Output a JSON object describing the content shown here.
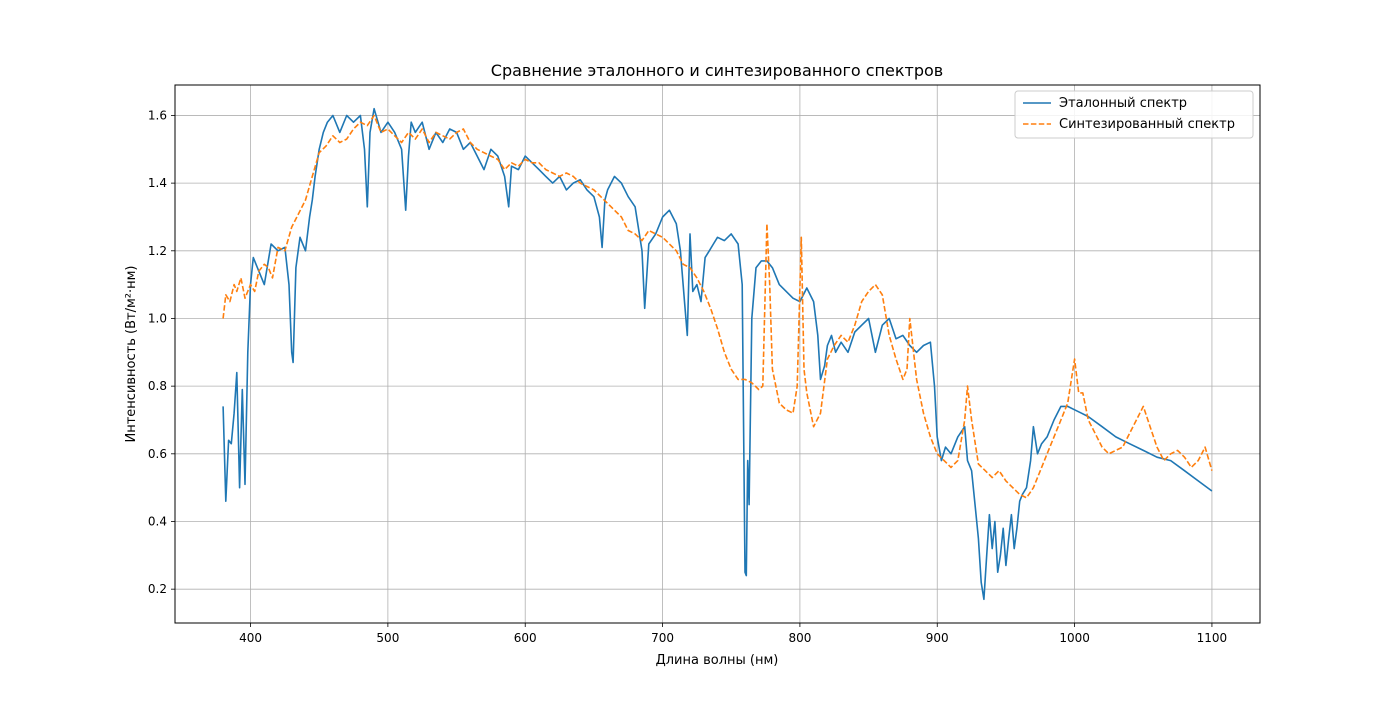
{
  "chart_data": {
    "type": "line",
    "title": "Сравнение эталонного и синтезированного спектров",
    "xlabel": "Длина волны (нм)",
    "ylabel": "Интенсивность (Вт/м²·нм)",
    "xlim": [
      345,
      1135
    ],
    "ylim": [
      0.1,
      1.69
    ],
    "xticks": [
      400,
      500,
      600,
      700,
      800,
      900,
      1000,
      1100
    ],
    "yticks": [
      0.2,
      0.4,
      0.6,
      0.8,
      1.0,
      1.2,
      1.4,
      1.6
    ],
    "ytick_labels": [
      "0.2",
      "0.4",
      "0.6",
      "0.8",
      "1.0",
      "1.2",
      "1.4",
      "1.6"
    ],
    "grid": true,
    "legend_position": "top-right",
    "series": [
      {
        "name": "Эталонный спектр",
        "color": "#1f77b4",
        "dash": "solid",
        "x": [
          380,
          382,
          384,
          386,
          388,
          390,
          392,
          394,
          396,
          398,
          400,
          402,
          405,
          410,
          415,
          420,
          425,
          428,
          430,
          431,
          433,
          436,
          440,
          443,
          445,
          447,
          450,
          453,
          456,
          460,
          465,
          470,
          475,
          480,
          483,
          485,
          487,
          490,
          495,
          500,
          505,
          510,
          513,
          515,
          517,
          520,
          525,
          530,
          535,
          540,
          545,
          550,
          555,
          560,
          565,
          570,
          575,
          580,
          585,
          588,
          590,
          595,
          600,
          605,
          610,
          615,
          620,
          625,
          630,
          635,
          640,
          645,
          650,
          654,
          656,
          658,
          660,
          665,
          670,
          675,
          680,
          685,
          687,
          690,
          695,
          700,
          705,
          710,
          713,
          716,
          718,
          720,
          722,
          725,
          728,
          731,
          734,
          737,
          740,
          745,
          750,
          755,
          758,
          760,
          761,
          762,
          763,
          765,
          768,
          772,
          776,
          780,
          785,
          790,
          795,
          800,
          805,
          810,
          813,
          815,
          818,
          820,
          823,
          826,
          830,
          835,
          840,
          845,
          850,
          855,
          860,
          865,
          870,
          875,
          880,
          885,
          890,
          895,
          898,
          900,
          903,
          906,
          910,
          915,
          920,
          922,
          925,
          928,
          930,
          932,
          934,
          936,
          938,
          940,
          942,
          944,
          946,
          948,
          950,
          952,
          954,
          956,
          958,
          960,
          962,
          965,
          968,
          970,
          973,
          976,
          980,
          985,
          990,
          995,
          1000,
          1005,
          1010,
          1020,
          1030,
          1040,
          1050,
          1060,
          1070,
          1080,
          1090,
          1100
        ],
        "y": [
          0.74,
          0.46,
          0.64,
          0.63,
          0.72,
          0.84,
          0.5,
          0.79,
          0.51,
          0.9,
          1.1,
          1.18,
          1.15,
          1.1,
          1.22,
          1.2,
          1.21,
          1.1,
          0.9,
          0.87,
          1.15,
          1.24,
          1.2,
          1.3,
          1.35,
          1.42,
          1.5,
          1.55,
          1.58,
          1.6,
          1.55,
          1.6,
          1.58,
          1.6,
          1.5,
          1.33,
          1.55,
          1.62,
          1.55,
          1.58,
          1.55,
          1.5,
          1.32,
          1.48,
          1.58,
          1.55,
          1.58,
          1.5,
          1.55,
          1.52,
          1.56,
          1.55,
          1.5,
          1.52,
          1.48,
          1.44,
          1.5,
          1.48,
          1.42,
          1.33,
          1.45,
          1.44,
          1.48,
          1.46,
          1.44,
          1.42,
          1.4,
          1.42,
          1.38,
          1.4,
          1.41,
          1.38,
          1.36,
          1.3,
          1.21,
          1.35,
          1.38,
          1.42,
          1.4,
          1.36,
          1.33,
          1.2,
          1.03,
          1.22,
          1.25,
          1.3,
          1.32,
          1.28,
          1.2,
          1.05,
          0.95,
          1.25,
          1.08,
          1.1,
          1.05,
          1.18,
          1.2,
          1.22,
          1.24,
          1.23,
          1.25,
          1.22,
          1.1,
          0.25,
          0.24,
          0.58,
          0.45,
          1.0,
          1.15,
          1.17,
          1.17,
          1.15,
          1.1,
          1.08,
          1.06,
          1.05,
          1.09,
          1.05,
          0.95,
          0.82,
          0.86,
          0.92,
          0.95,
          0.9,
          0.93,
          0.9,
          0.96,
          0.98,
          1.0,
          0.9,
          0.98,
          1.0,
          0.94,
          0.95,
          0.92,
          0.9,
          0.92,
          0.93,
          0.8,
          0.65,
          0.58,
          0.62,
          0.6,
          0.65,
          0.68,
          0.58,
          0.55,
          0.43,
          0.35,
          0.22,
          0.17,
          0.3,
          0.42,
          0.32,
          0.4,
          0.25,
          0.3,
          0.38,
          0.27,
          0.35,
          0.42,
          0.32,
          0.38,
          0.46,
          0.48,
          0.5,
          0.58,
          0.68,
          0.6,
          0.63,
          0.65,
          0.7,
          0.74,
          0.74,
          0.73,
          0.72,
          0.71,
          0.68,
          0.65,
          0.63,
          0.61,
          0.59,
          0.58,
          0.55,
          0.52,
          0.49
        ]
      },
      {
        "name": "Синтезированный спектр",
        "color": "#ff7f0e",
        "dash": "dashed",
        "x": [
          380,
          382,
          385,
          388,
          390,
          393,
          396,
          400,
          403,
          406,
          410,
          413,
          416,
          420,
          425,
          430,
          435,
          440,
          445,
          450,
          455,
          460,
          465,
          470,
          475,
          480,
          485,
          490,
          495,
          500,
          505,
          510,
          515,
          520,
          525,
          530,
          535,
          540,
          545,
          550,
          555,
          560,
          565,
          570,
          575,
          580,
          585,
          590,
          595,
          600,
          605,
          610,
          615,
          620,
          625,
          630,
          635,
          640,
          645,
          650,
          655,
          660,
          665,
          670,
          675,
          680,
          685,
          690,
          695,
          700,
          705,
          710,
          715,
          720,
          725,
          730,
          735,
          740,
          745,
          750,
          755,
          760,
          765,
          770,
          773,
          776,
          778,
          780,
          785,
          790,
          795,
          798,
          801,
          803,
          805,
          810,
          815,
          820,
          825,
          830,
          835,
          840,
          845,
          850,
          855,
          860,
          865,
          870,
          875,
          878,
          880,
          885,
          890,
          895,
          900,
          905,
          910,
          915,
          920,
          922,
          925,
          930,
          935,
          940,
          945,
          950,
          955,
          960,
          965,
          970,
          975,
          980,
          985,
          990,
          995,
          1000,
          1003,
          1006,
          1010,
          1015,
          1020,
          1025,
          1030,
          1035,
          1040,
          1045,
          1050,
          1055,
          1060,
          1065,
          1070,
          1075,
          1080,
          1085,
          1090,
          1095,
          1100
        ],
        "y": [
          1.0,
          1.07,
          1.05,
          1.1,
          1.08,
          1.12,
          1.06,
          1.1,
          1.08,
          1.14,
          1.16,
          1.15,
          1.12,
          1.21,
          1.2,
          1.27,
          1.31,
          1.35,
          1.42,
          1.49,
          1.51,
          1.54,
          1.52,
          1.53,
          1.56,
          1.58,
          1.57,
          1.6,
          1.55,
          1.56,
          1.54,
          1.52,
          1.55,
          1.53,
          1.56,
          1.52,
          1.55,
          1.54,
          1.53,
          1.55,
          1.56,
          1.52,
          1.5,
          1.49,
          1.48,
          1.47,
          1.44,
          1.46,
          1.45,
          1.47,
          1.46,
          1.46,
          1.44,
          1.43,
          1.42,
          1.43,
          1.42,
          1.4,
          1.39,
          1.38,
          1.36,
          1.34,
          1.32,
          1.3,
          1.26,
          1.25,
          1.23,
          1.26,
          1.25,
          1.24,
          1.22,
          1.2,
          1.16,
          1.15,
          1.12,
          1.08,
          1.03,
          0.97,
          0.9,
          0.85,
          0.82,
          0.82,
          0.81,
          0.79,
          0.8,
          1.28,
          1.1,
          0.85,
          0.75,
          0.73,
          0.72,
          0.8,
          1.24,
          0.85,
          0.78,
          0.68,
          0.72,
          0.88,
          0.92,
          0.95,
          0.93,
          0.98,
          1.05,
          1.08,
          1.1,
          1.07,
          0.95,
          0.88,
          0.82,
          0.85,
          1.0,
          0.82,
          0.72,
          0.65,
          0.6,
          0.58,
          0.56,
          0.58,
          0.7,
          0.8,
          0.7,
          0.57,
          0.55,
          0.53,
          0.55,
          0.52,
          0.5,
          0.48,
          0.47,
          0.5,
          0.55,
          0.6,
          0.65,
          0.7,
          0.75,
          0.88,
          0.78,
          0.78,
          0.7,
          0.66,
          0.62,
          0.6,
          0.61,
          0.62,
          0.66,
          0.7,
          0.74,
          0.68,
          0.62,
          0.58,
          0.6,
          0.61,
          0.59,
          0.56,
          0.58,
          0.62,
          0.55
        ]
      }
    ]
  }
}
